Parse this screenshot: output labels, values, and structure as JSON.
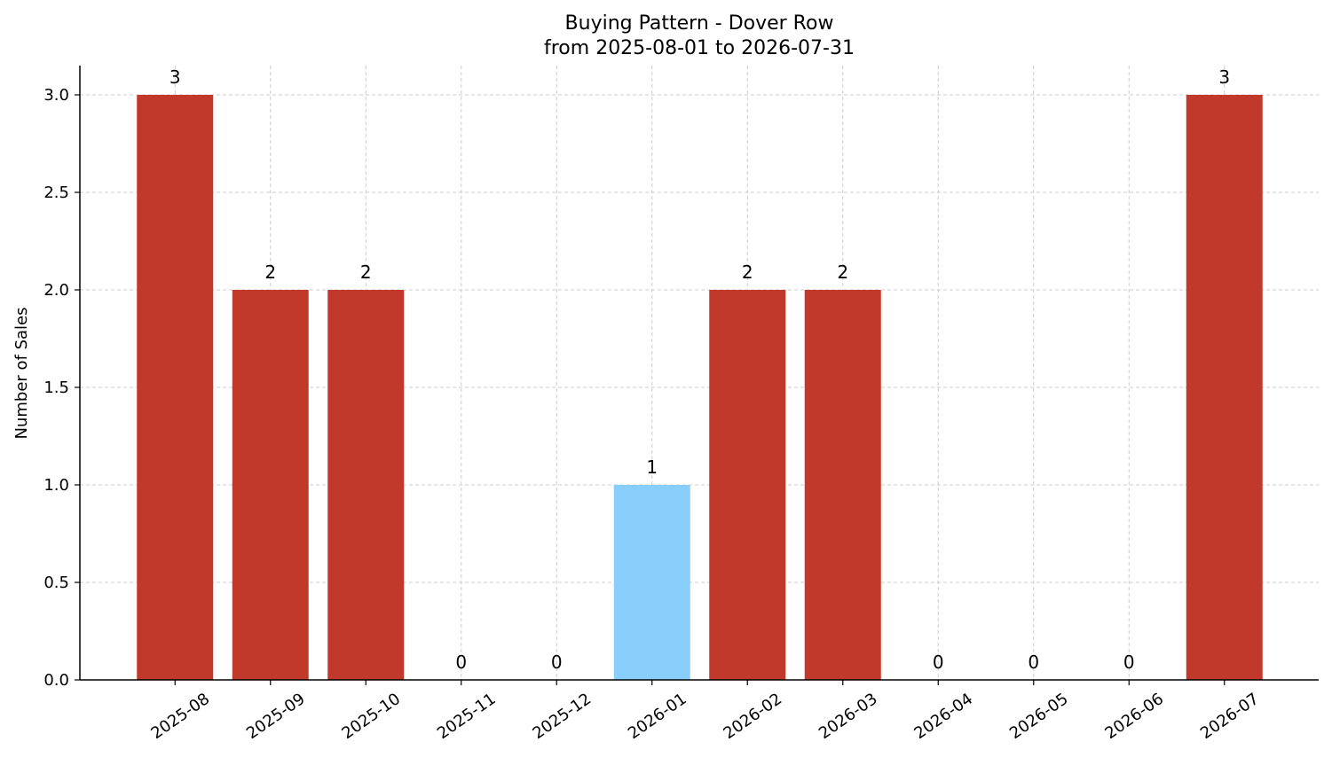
{
  "chart_data": {
    "type": "bar",
    "title_line1": "Buying Pattern - Dover Row",
    "title_line2": "from 2025-08-01 to 2026-07-31",
    "xlabel": "",
    "ylabel": "Number of Sales",
    "ylim": [
      0,
      3.15
    ],
    "yticks": [
      "0.0",
      "0.5",
      "1.0",
      "1.5",
      "2.0",
      "2.5",
      "3.0"
    ],
    "grid": true,
    "categories": [
      "2025-08",
      "2025-09",
      "2025-10",
      "2025-11",
      "2025-12",
      "2026-01",
      "2026-02",
      "2026-03",
      "2026-04",
      "2026-05",
      "2026-06",
      "2026-07"
    ],
    "values": [
      3,
      2,
      2,
      0,
      0,
      1,
      2,
      2,
      0,
      0,
      0,
      3
    ],
    "bar_colors": [
      "#c0392b",
      "#c0392b",
      "#c0392b",
      "#c0392b",
      "#c0392b",
      "#87cefa",
      "#c0392b",
      "#c0392b",
      "#c0392b",
      "#c0392b",
      "#c0392b",
      "#c0392b"
    ]
  }
}
